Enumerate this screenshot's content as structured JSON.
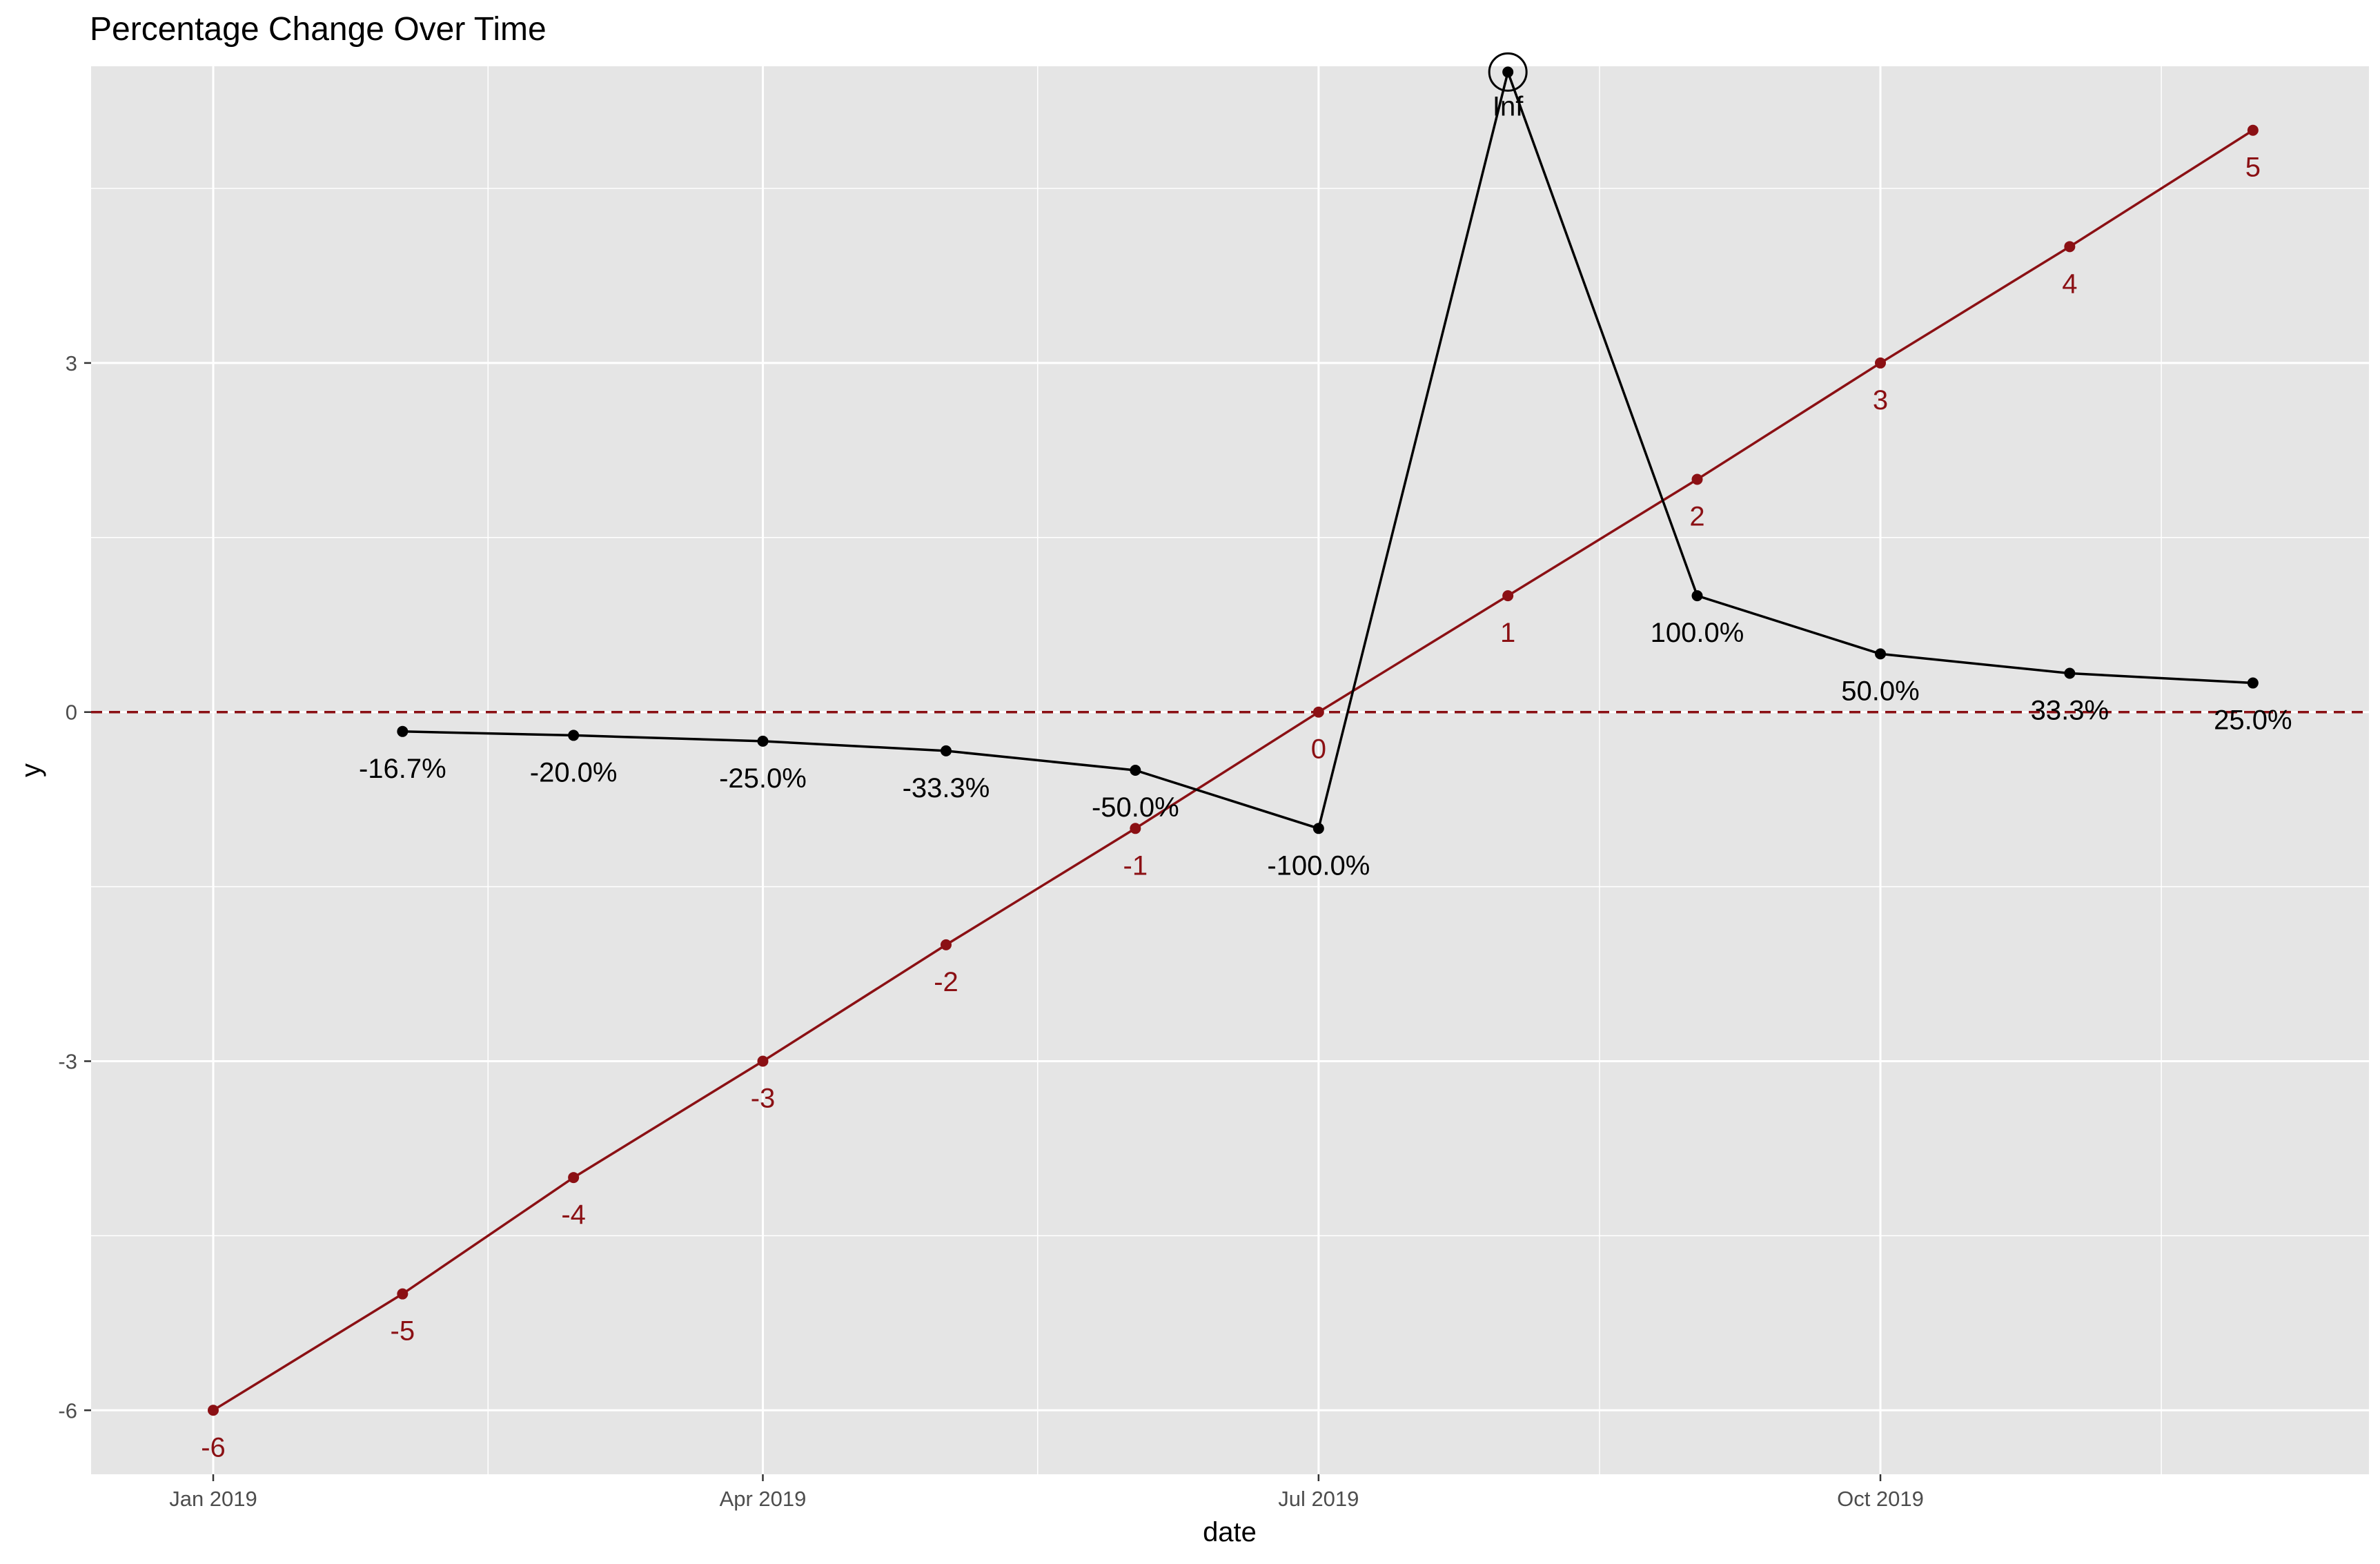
{
  "chart_data": {
    "type": "line",
    "title": "Percentage Change Over Time",
    "xlabel": "date",
    "ylabel": "y",
    "xlim": [
      "2018-12-12",
      "2019-12-20"
    ],
    "ylim": [
      -6.55,
      5.55
    ],
    "x_ticks": [
      {
        "date": "2019-01-01",
        "label": "Jan 2019"
      },
      {
        "date": "2019-04-01",
        "label": "Apr 2019"
      },
      {
        "date": "2019-07-01",
        "label": "Jul 2019"
      },
      {
        "date": "2019-10-01",
        "label": "Oct 2019"
      }
    ],
    "x_minor_ticks": [
      "2019-02-15",
      "2019-05-16",
      "2019-08-16",
      "2019-11-16"
    ],
    "y_ticks": [
      -6,
      -3,
      0,
      3
    ],
    "y_minor_ticks": [
      -4.5,
      -1.5,
      1.5,
      4.5
    ],
    "grid": true,
    "legend": "none",
    "reference_line": {
      "y": 0,
      "style": "dashed",
      "color": "#8b1014"
    },
    "colors": {
      "y_series": "#8b1014",
      "pct_series": "#000000",
      "panel": "#e5e5e5",
      "grid": "#ffffff"
    },
    "x": [
      "2019-01-01",
      "2019-02-01",
      "2019-03-01",
      "2019-04-01",
      "2019-05-01",
      "2019-06-01",
      "2019-07-01",
      "2019-08-01",
      "2019-09-01",
      "2019-10-01",
      "2019-11-01",
      "2019-12-01"
    ],
    "series": [
      {
        "values": [
          -6,
          -5,
          -4,
          -3,
          -2,
          -1,
          0,
          1,
          2,
          3,
          4,
          5
        ],
        "labels": [
          "-6",
          "-5",
          "-4",
          "-3",
          "-2",
          "-1",
          "0",
          "1",
          "2",
          "3",
          "4",
          "5"
        ]
      },
      {
        "values": [
          null,
          -0.1667,
          -0.2,
          -0.25,
          -0.3333,
          -0.5,
          -1.0,
          5.5,
          1.0,
          0.5,
          0.3333,
          0.25
        ],
        "labels": [
          "",
          "-16.7%",
          "-20.0%",
          "-25.0%",
          "-33.3%",
          "-50.0%",
          "-100.0%",
          "Inf",
          "100.0%",
          "50.0%",
          "33.3%",
          "25.0%"
        ],
        "highlight": {
          "date": "2019-08-01",
          "label": "Inf",
          "marker": "open-circle"
        }
      }
    ]
  }
}
